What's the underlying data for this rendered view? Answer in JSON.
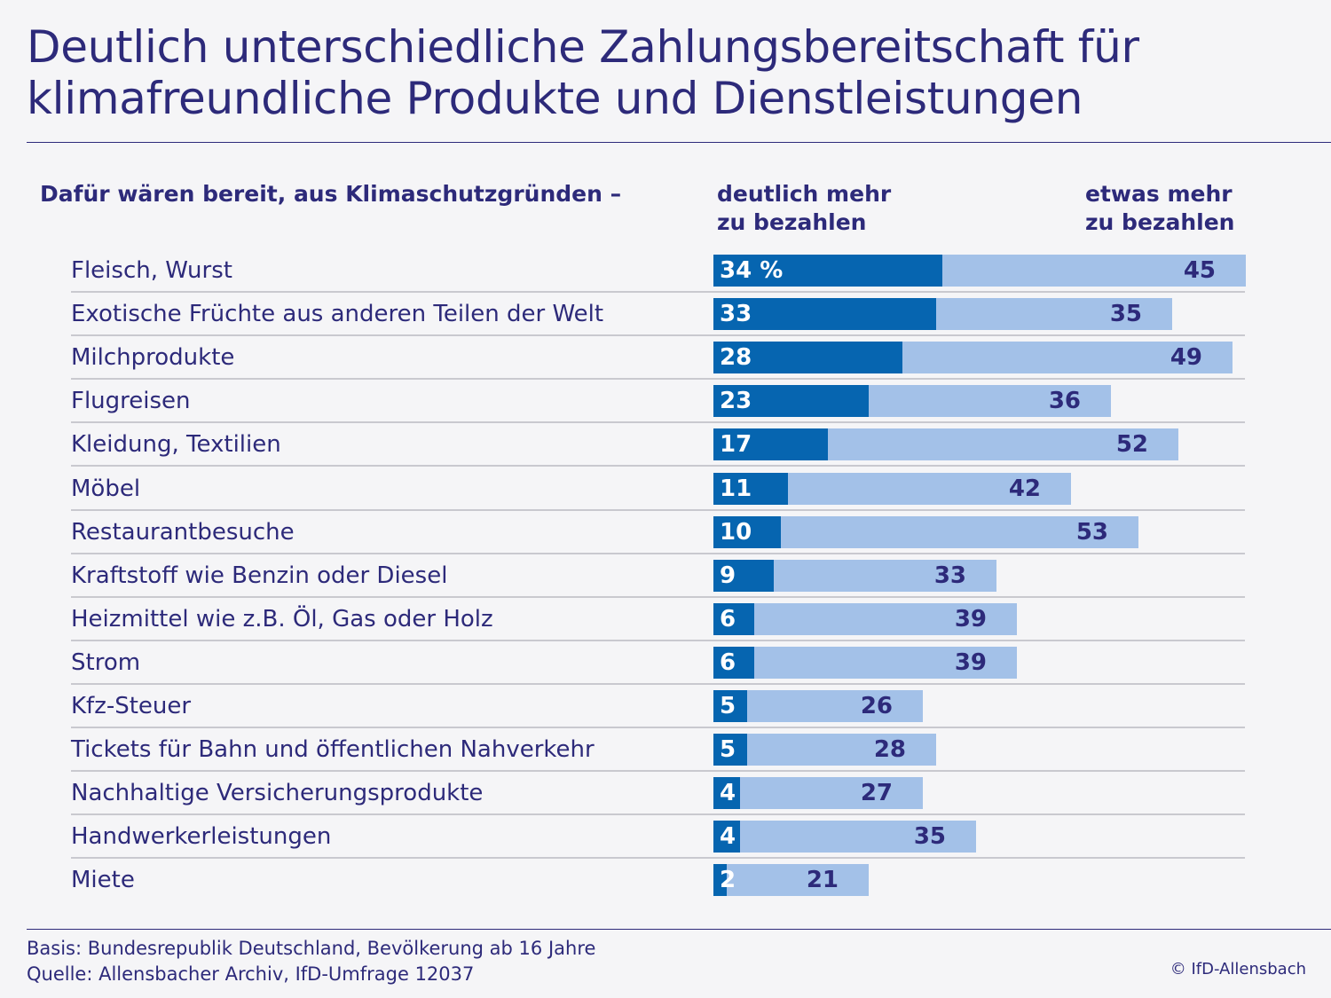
{
  "title": {
    "line1": "Deutlich unterschiedliche Zahlungsbereitschaft für",
    "line2": "klimafreundliche Produkte und Dienstleistungen"
  },
  "headers": {
    "question": "Dafür wären bereit, aus Klimaschutzgründen –",
    "strong_line1": "deutlich mehr",
    "strong_line2": "zu bezahlen",
    "some_line1": "etwas mehr",
    "some_line2": "zu bezahlen"
  },
  "chart_data": {
    "type": "bar",
    "orientation": "horizontal",
    "stacked": true,
    "unit": "%",
    "categories": [
      "Fleisch, Wurst",
      "Exotische Früchte aus anderen Teilen der Welt",
      "Milchprodukte",
      "Flugreisen",
      "Kleidung, Textilien",
      "Möbel",
      "Restaurantbesuche",
      "Kraftstoff wie Benzin oder Diesel",
      "Heizmittel wie z.B. Öl, Gas oder Holz",
      "Strom",
      "Kfz-Steuer",
      "Tickets für Bahn und öffentlichen Nahverkehr",
      "Nachhaltige Versicherungsprodukte",
      "Handwerkerleistungen",
      "Miete"
    ],
    "series": [
      {
        "name": "deutlich mehr zu bezahlen",
        "color": "#0665b0",
        "values": [
          34,
          33,
          28,
          23,
          17,
          11,
          10,
          9,
          6,
          6,
          5,
          5,
          4,
          4,
          2
        ],
        "labels": [
          "34 %",
          "33",
          "28",
          "23",
          "17",
          "11",
          "10",
          "9",
          "6",
          "6",
          "5",
          "5",
          "4",
          "4",
          "2"
        ]
      },
      {
        "name": "etwas mehr zu bezahlen",
        "color": "#a3c1e8",
        "values": [
          45,
          35,
          49,
          36,
          52,
          42,
          53,
          33,
          39,
          39,
          26,
          28,
          27,
          35,
          21
        ],
        "labels": [
          "45",
          "35",
          "49",
          "36",
          "52",
          "42",
          "53",
          "33",
          "39",
          "39",
          "26",
          "28",
          "27",
          "35",
          "21"
        ]
      }
    ],
    "grid": false,
    "legend": "column headers above bars"
  },
  "footer": {
    "line1": "Basis: Bundesrepublik Deutschland, Bevölkerung ab 16 Jahre",
    "line2": "Quelle: Allensbacher Archiv, IfD-Umfrage 12037",
    "copyright": "© IfD-Allensbach"
  },
  "colors": {
    "text": "#2d2a7a",
    "background": "#f5f5f7",
    "separator": "#c9c9cf"
  }
}
